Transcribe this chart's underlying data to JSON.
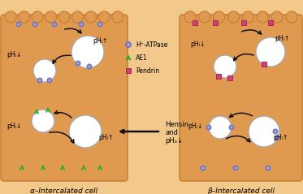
{
  "bg_color": "#f2c98a",
  "cell_fill": "#e09a50",
  "cell_edge": "#c8813a",
  "bump_fill": "#e09a50",
  "vesicle_fill": "#ffffff",
  "vesicle_edge": "#999999",
  "atpase_color": "#7777bb",
  "ae1_color": "#33aa33",
  "pendrin_color": "#cc4477",
  "pendrin_edge": "#aa2255",
  "arrow_color": "#111111",
  "alpha_label": "α–Intercalated cell",
  "beta_label": "β–Intercalated cell",
  "legend_atpase": "H⁺-ATPase",
  "legend_ae1": "AE1",
  "legend_pendrin": "Pendrin",
  "hensin_lines": [
    "Hensin",
    "and",
    "pHₒ↓"
  ],
  "pH_down": "pHᵢ↓",
  "pH_up": "pHᵢ↑"
}
